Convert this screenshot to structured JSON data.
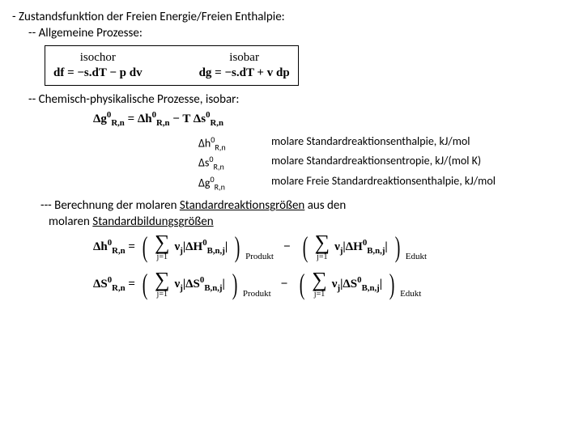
{
  "heading": "- Zustandsfunktion der Freien Energie/Freien Enthalpie:",
  "sub1": "-- Allgemeine Prozesse:",
  "table": {
    "col1": {
      "head": "isochor",
      "eq": "df = −s.dT − p dv"
    },
    "col2": {
      "head": "isobar",
      "eq": "dg = −s.dT + v dp"
    }
  },
  "sub2": "-- Chemisch-physikalische Prozesse, isobar:",
  "eq_center_left": "Δg",
  "eq_center_sup": "0",
  "eq_center_sub": "R,n",
  "eq_center_mid": " = Δh",
  "eq_center_mid2": " − T Δs",
  "defs": [
    {
      "sym_pre": "Δh",
      "sup": "0",
      "sub": "R,n",
      "desc": "molare Standardreaktionsenthalpie, kJ/mol"
    },
    {
      "sym_pre": "Δs",
      "sup": "0",
      "sub": "R,n",
      "desc": "molare Standardreaktionsentropie, kJ/(mol K)"
    },
    {
      "sym_pre": "Δg",
      "sup": "0",
      "sub": "R,n",
      "desc": "molare Freie Standardreaktionsenthalpie, kJ/mol"
    }
  ],
  "sub3_a": "--- Berechnung der molaren ",
  "sub3_b": "Standardreaktionsgrößen",
  "sub3_c": " aus den",
  "sub3_d": "       molaren ",
  "sub3_e": "Standardbildungsgrößen",
  "final_eqs": {
    "h": {
      "lhs_pre": "Δh",
      "sup": "0",
      "sub": "R,n",
      "inner": "ΔH",
      "inner_sup": "0",
      "inner_sub": "B,n,j",
      "prod": "Produkt",
      "edu": "Edukt",
      "nu": "ν",
      "j": "j",
      "j1": "j=1"
    },
    "s": {
      "lhs_pre": "ΔS",
      "sup": "0",
      "sub": "R,n",
      "inner": "ΔS",
      "inner_sup": "0",
      "inner_sub": "B,n,j"
    }
  }
}
